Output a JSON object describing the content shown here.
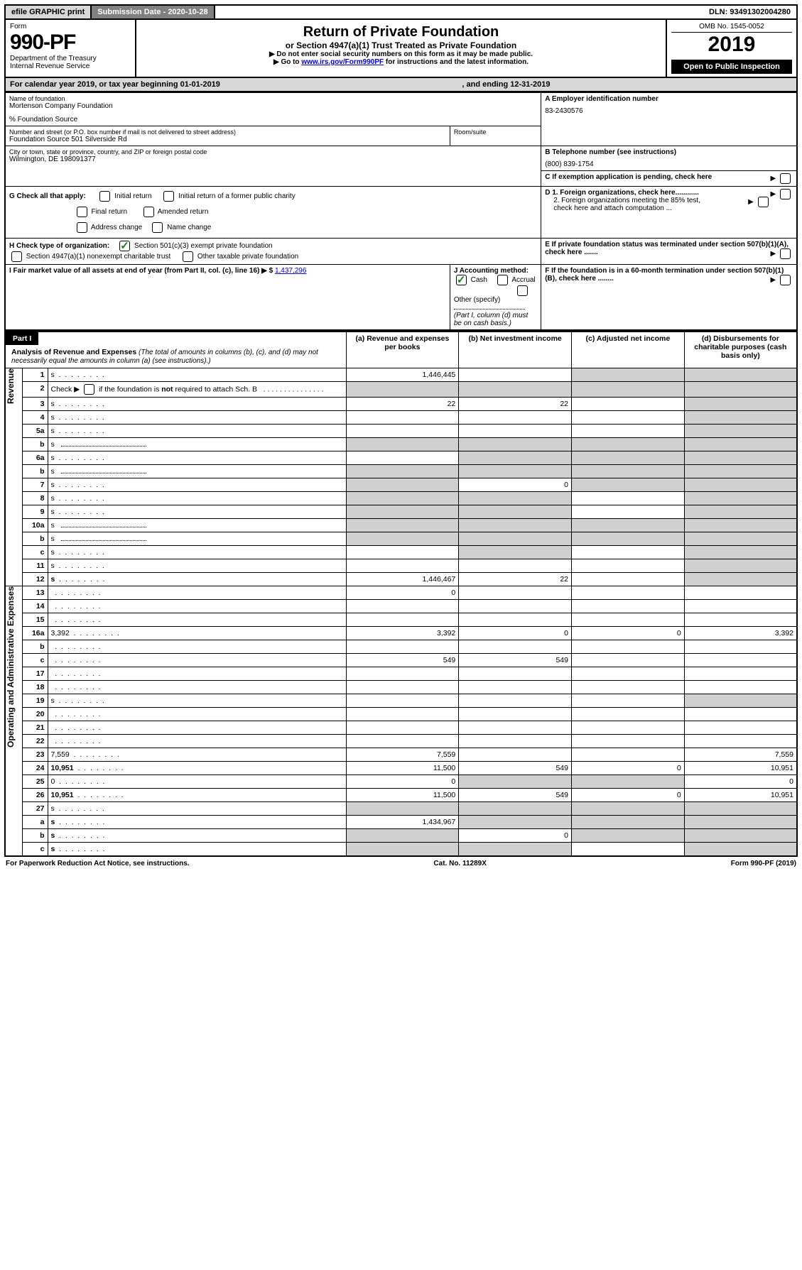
{
  "top": {
    "efile": "efile GRAPHIC print",
    "sub_label": "Submission Date - 2020-10-28",
    "dln": "DLN: 93491302004280"
  },
  "header": {
    "form_label": "Form",
    "form_num": "990-PF",
    "dept1": "Department of the Treasury",
    "dept2": "Internal Revenue Service",
    "title": "Return of Private Foundation",
    "subtitle": "or Section 4947(a)(1) Trust Treated as Private Foundation",
    "instr1": "▶ Do not enter social security numbers on this form as it may be made public.",
    "instr2_pre": "▶ Go to ",
    "instr2_link": "www.irs.gov/Form990PF",
    "instr2_post": " for instructions and the latest information.",
    "omb": "OMB No. 1545-0052",
    "year": "2019",
    "openpub": "Open to Public Inspection"
  },
  "cal": {
    "pre": "For calendar year 2019, or tax year beginning 01-01-2019",
    "mid": ", and ending 12-31-2019"
  },
  "info": {
    "name_label": "Name of foundation",
    "name": "Mortenson Company Foundation",
    "source": "% Foundation Source",
    "addr_label": "Number and street (or P.O. box number if mail is not delivered to street address)",
    "addr": "Foundation Source 501 Silverside Rd",
    "room_label": "Room/suite",
    "city_label": "City or town, state or province, country, and ZIP or foreign postal code",
    "city": "Wilmington, DE  198091377",
    "ein_label": "A Employer identification number",
    "ein": "83-2430576",
    "phone_label": "B  Telephone number (see instructions)",
    "phone": "(800) 839-1754",
    "c_label": "C  If exemption application is pending, check here",
    "g_label": "G Check all that apply:",
    "g_opts": [
      "Initial return",
      "Initial return of a former public charity",
      "Final return",
      "Amended return",
      "Address change",
      "Name change"
    ],
    "d1": "D 1. Foreign organizations, check here............",
    "d2": "2. Foreign organizations meeting the 85% test, check here and attach computation ...",
    "h_label": "H Check type of organization:",
    "h1": "Section 501(c)(3) exempt private foundation",
    "h2": "Section 4947(a)(1) nonexempt charitable trust",
    "h3": "Other taxable private foundation",
    "e_label": "E  If private foundation status was terminated under section 507(b)(1)(A), check here .......",
    "i_label": "I Fair market value of all assets at end of year (from Part II, col. (c), line 16) ▶ $ ",
    "i_val": "1,437,296",
    "j_label": "J Accounting method:",
    "j_cash": "Cash",
    "j_accrual": "Accrual",
    "j_other": "Other (specify)",
    "j_note": "(Part I, column (d) must be on cash basis.)",
    "f_label": "F  If the foundation is in a 60-month termination under section 507(b)(1)(B), check here ........"
  },
  "part1": {
    "hdr": "Part I",
    "title": "Analysis of Revenue and Expenses",
    "note": " (The total of amounts in columns (b), (c), and (d) may not necessarily equal the amounts in column (a) (see instructions).)",
    "cols": {
      "a": "(a) Revenue and expenses per books",
      "b": "(b) Net investment income",
      "c": "(c) Adjusted net income",
      "d": "(d) Disbursements for charitable purposes (cash basis only)"
    }
  },
  "side": {
    "rev": "Revenue",
    "exp": "Operating and Administrative Expenses"
  },
  "rows": [
    {
      "n": "1",
      "d": "s",
      "a": "1,446,445",
      "b": "",
      "c": "s"
    },
    {
      "n": "2",
      "d": "s",
      "a": "s",
      "b": "s",
      "c": "s",
      "special": "check"
    },
    {
      "n": "3",
      "d": "s",
      "a": "22",
      "b": "22",
      "c": ""
    },
    {
      "n": "4",
      "d": "s",
      "a": "",
      "b": "",
      "c": ""
    },
    {
      "n": "5a",
      "d": "s",
      "a": "",
      "b": "",
      "c": ""
    },
    {
      "n": "b",
      "d": "s",
      "a": "s",
      "b": "s",
      "c": "s",
      "blank": true
    },
    {
      "n": "6a",
      "d": "s",
      "a": "",
      "b": "s",
      "c": "s"
    },
    {
      "n": "b",
      "d": "s",
      "a": "s",
      "b": "s",
      "c": "s",
      "blank": true
    },
    {
      "n": "7",
      "d": "s",
      "a": "s",
      "b": "0",
      "c": "s"
    },
    {
      "n": "8",
      "d": "s",
      "a": "s",
      "b": "s",
      "c": ""
    },
    {
      "n": "9",
      "d": "s",
      "a": "s",
      "b": "s",
      "c": ""
    },
    {
      "n": "10a",
      "d": "s",
      "a": "s",
      "b": "s",
      "c": "s",
      "blank": true
    },
    {
      "n": "b",
      "d": "s",
      "a": "s",
      "b": "s",
      "c": "s",
      "blank": true
    },
    {
      "n": "c",
      "d": "s",
      "a": "",
      "b": "s",
      "c": ""
    },
    {
      "n": "11",
      "d": "s",
      "a": "",
      "b": "",
      "c": ""
    },
    {
      "n": "12",
      "d": "s",
      "a": "1,446,467",
      "b": "22",
      "c": "",
      "bold": true
    },
    {
      "n": "13",
      "d": "",
      "a": "0",
      "b": "",
      "c": ""
    },
    {
      "n": "14",
      "d": "",
      "a": "",
      "b": "",
      "c": ""
    },
    {
      "n": "15",
      "d": "",
      "a": "",
      "b": "",
      "c": ""
    },
    {
      "n": "16a",
      "d": "3,392",
      "a": "3,392",
      "b": "0",
      "c": "0"
    },
    {
      "n": "b",
      "d": "",
      "a": "",
      "b": "",
      "c": ""
    },
    {
      "n": "c",
      "d": "",
      "a": "549",
      "b": "549",
      "c": ""
    },
    {
      "n": "17",
      "d": "",
      "a": "",
      "b": "",
      "c": ""
    },
    {
      "n": "18",
      "d": "",
      "a": "",
      "b": "",
      "c": ""
    },
    {
      "n": "19",
      "d": "s",
      "a": "",
      "b": "",
      "c": ""
    },
    {
      "n": "20",
      "d": "",
      "a": "",
      "b": "",
      "c": ""
    },
    {
      "n": "21",
      "d": "",
      "a": "",
      "b": "",
      "c": ""
    },
    {
      "n": "22",
      "d": "",
      "a": "",
      "b": "",
      "c": ""
    },
    {
      "n": "23",
      "d": "7,559",
      "a": "7,559",
      "b": "",
      "c": ""
    },
    {
      "n": "24",
      "d": "10,951",
      "a": "11,500",
      "b": "549",
      "c": "0",
      "bold": true
    },
    {
      "n": "25",
      "d": "0",
      "a": "0",
      "b": "s",
      "c": "s"
    },
    {
      "n": "26",
      "d": "10,951",
      "a": "11,500",
      "b": "549",
      "c": "0",
      "bold": true
    },
    {
      "n": "27",
      "d": "s",
      "a": "s",
      "b": "s",
      "c": "s"
    },
    {
      "n": "a",
      "d": "s",
      "a": "1,434,967",
      "b": "s",
      "c": "s",
      "bold": true
    },
    {
      "n": "b",
      "d": "s",
      "a": "s",
      "b": "0",
      "c": "s",
      "bold": true
    },
    {
      "n": "c",
      "d": "s",
      "a": "s",
      "b": "s",
      "c": "",
      "bold": true
    }
  ],
  "footer": {
    "left": "For Paperwork Reduction Act Notice, see instructions.",
    "mid": "Cat. No. 11289X",
    "right": "Form 990-PF (2019)"
  }
}
